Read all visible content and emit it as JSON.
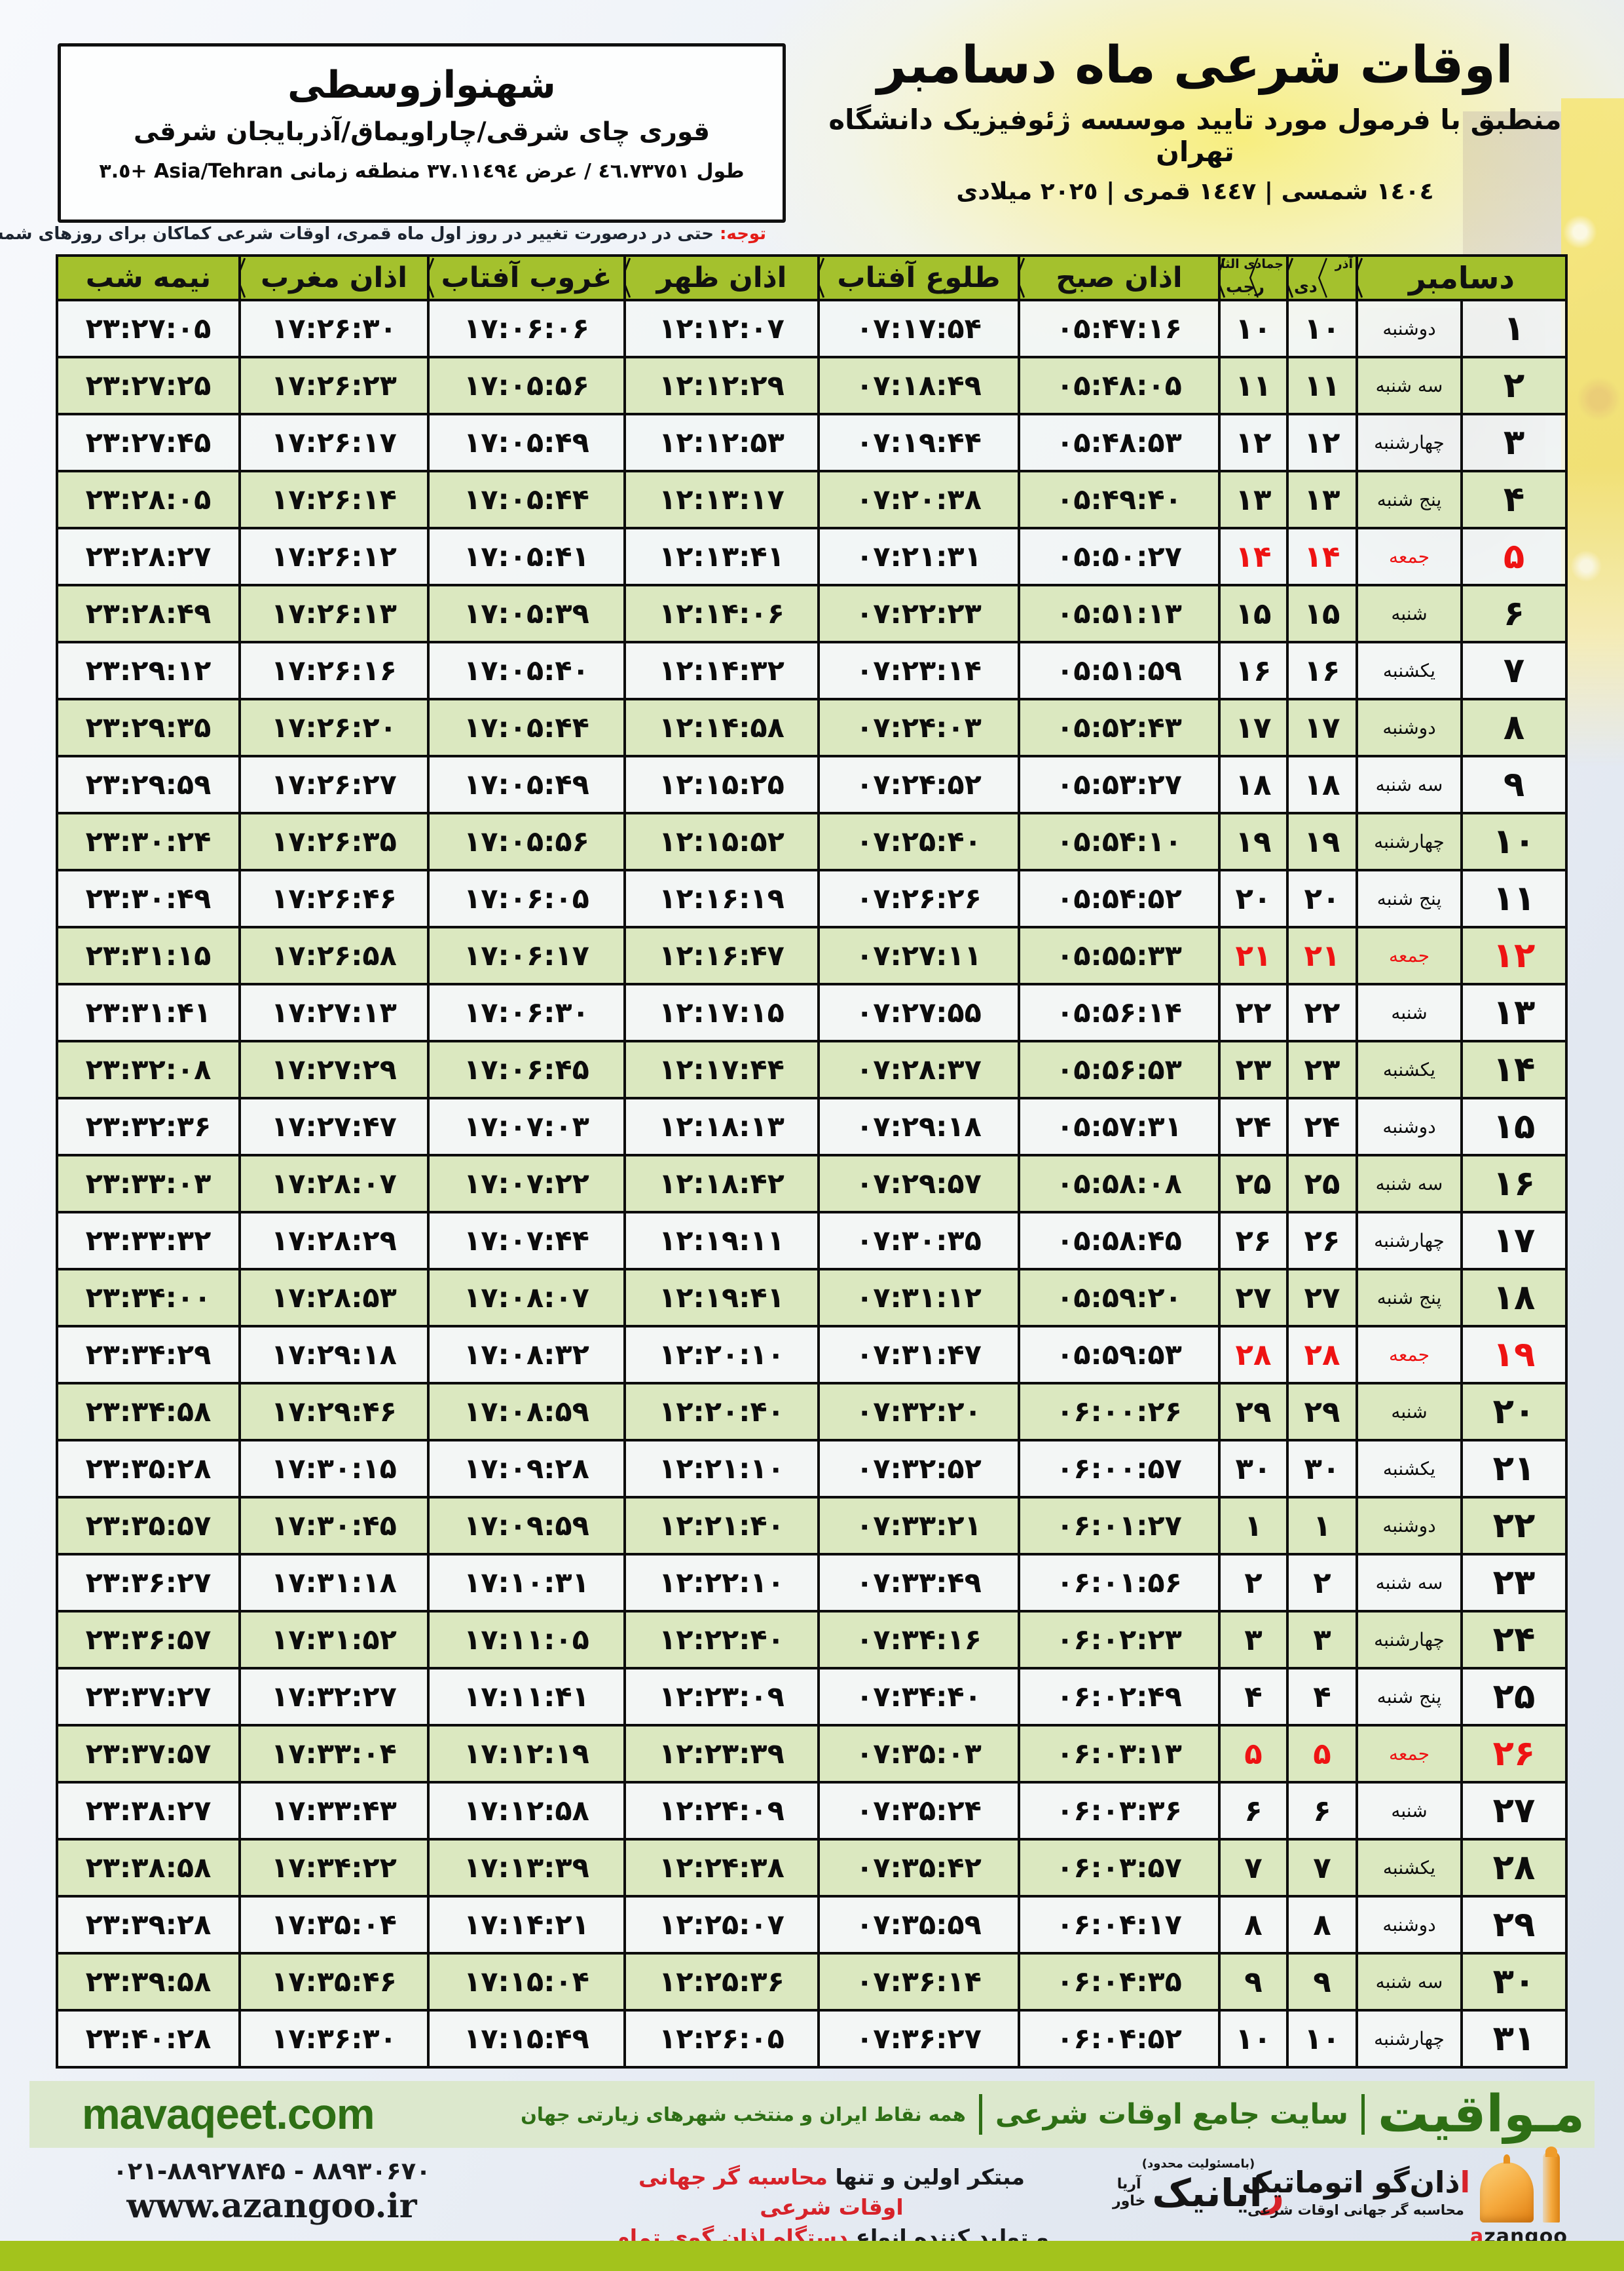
{
  "location_box": {
    "title": "شهنوازوسطی",
    "subtitle": "قوری چای شرقی/چاراویماق/آذربایجان شرقی",
    "coords": "طول ٤٦.٧٣٧٥١ / عرض ٣٧.١١٤٩٤ منطقه زمانی Asia/Tehran +٣.٥"
  },
  "header": {
    "title": "اوقات شرعی ماه دسامبر",
    "subtitle": "منطبق با فرمول مورد تایید موسسه ژئوفیزیک دانشگاه تهران",
    "dates": "١٤٠٤ شمسی | ١٤٤٧ قمری | ٢٠٢٥ میلادی"
  },
  "notice": {
    "label": "توجه:",
    "text": "حتی در درصورت تغییر در روز اول ماه قمری، اوقات شرعی کماکان برای روزهای شمسی و میلادی معتبر است."
  },
  "table": {
    "headers": {
      "month": "دسامبر",
      "jalali_top": "آذر",
      "jalali_bottom": "دی",
      "hijri_top": "جمادی الثانی",
      "hijri_bottom": "رجب",
      "fajr": "اذان صبح",
      "sunrise": "طلوع آفتاب",
      "noon": "اذان ظهر",
      "sunset": "غروب آفتاب",
      "maghrib": "اذان مغرب",
      "midnight": "نیمه شب"
    },
    "rows": [
      {
        "day": "۱",
        "weekday": "دوشنبه",
        "jalali": "۱۰",
        "hijri": "۱۰",
        "sobh": "۰۵:۴۷:۱۶",
        "tolu": "۰۷:۱۷:۵۴",
        "zohr": "۱۲:۱۲:۰۷",
        "ghorub": "۱۷:۰۶:۰۶",
        "maghreb": "۱۷:۲۶:۳۰",
        "nimeshab": "۲۳:۲۷:۰۵",
        "friday": false
      },
      {
        "day": "۲",
        "weekday": "سه شنبه",
        "jalali": "۱۱",
        "hijri": "۱۱",
        "sobh": "۰۵:۴۸:۰۵",
        "tolu": "۰۷:۱۸:۴۹",
        "zohr": "۱۲:۱۲:۲۹",
        "ghorub": "۱۷:۰۵:۵۶",
        "maghreb": "۱۷:۲۶:۲۳",
        "nimeshab": "۲۳:۲۷:۲۵",
        "friday": false
      },
      {
        "day": "۳",
        "weekday": "چهارشنبه",
        "jalali": "۱۲",
        "hijri": "۱۲",
        "sobh": "۰۵:۴۸:۵۳",
        "tolu": "۰۷:۱۹:۴۴",
        "zohr": "۱۲:۱۲:۵۳",
        "ghorub": "۱۷:۰۵:۴۹",
        "maghreb": "۱۷:۲۶:۱۷",
        "nimeshab": "۲۳:۲۷:۴۵",
        "friday": false
      },
      {
        "day": "۴",
        "weekday": "پنج شنبه",
        "jalali": "۱۳",
        "hijri": "۱۳",
        "sobh": "۰۵:۴۹:۴۰",
        "tolu": "۰۷:۲۰:۳۸",
        "zohr": "۱۲:۱۳:۱۷",
        "ghorub": "۱۷:۰۵:۴۴",
        "maghreb": "۱۷:۲۶:۱۴",
        "nimeshab": "۲۳:۲۸:۰۵",
        "friday": false
      },
      {
        "day": "۵",
        "weekday": "جمعه",
        "jalali": "۱۴",
        "hijri": "۱۴",
        "sobh": "۰۵:۵۰:۲۷",
        "tolu": "۰۷:۲۱:۳۱",
        "zohr": "۱۲:۱۳:۴۱",
        "ghorub": "۱۷:۰۵:۴۱",
        "maghreb": "۱۷:۲۶:۱۲",
        "nimeshab": "۲۳:۲۸:۲۷",
        "friday": true
      },
      {
        "day": "۶",
        "weekday": "شنبه",
        "jalali": "۱۵",
        "hijri": "۱۵",
        "sobh": "۰۵:۵۱:۱۳",
        "tolu": "۰۷:۲۲:۲۳",
        "zohr": "۱۲:۱۴:۰۶",
        "ghorub": "۱۷:۰۵:۳۹",
        "maghreb": "۱۷:۲۶:۱۳",
        "nimeshab": "۲۳:۲۸:۴۹",
        "friday": false
      },
      {
        "day": "۷",
        "weekday": "یکشنبه",
        "jalali": "۱۶",
        "hijri": "۱۶",
        "sobh": "۰۵:۵۱:۵۹",
        "tolu": "۰۷:۲۳:۱۴",
        "zohr": "۱۲:۱۴:۳۲",
        "ghorub": "۱۷:۰۵:۴۰",
        "maghreb": "۱۷:۲۶:۱۶",
        "nimeshab": "۲۳:۲۹:۱۲",
        "friday": false
      },
      {
        "day": "۸",
        "weekday": "دوشنبه",
        "jalali": "۱۷",
        "hijri": "۱۷",
        "sobh": "۰۵:۵۲:۴۳",
        "tolu": "۰۷:۲۴:۰۳",
        "zohr": "۱۲:۱۴:۵۸",
        "ghorub": "۱۷:۰۵:۴۴",
        "maghreb": "۱۷:۲۶:۲۰",
        "nimeshab": "۲۳:۲۹:۳۵",
        "friday": false
      },
      {
        "day": "۹",
        "weekday": "سه شنبه",
        "jalali": "۱۸",
        "hijri": "۱۸",
        "sobh": "۰۵:۵۳:۲۷",
        "tolu": "۰۷:۲۴:۵۲",
        "zohr": "۱۲:۱۵:۲۵",
        "ghorub": "۱۷:۰۵:۴۹",
        "maghreb": "۱۷:۲۶:۲۷",
        "nimeshab": "۲۳:۲۹:۵۹",
        "friday": false
      },
      {
        "day": "۱۰",
        "weekday": "چهارشنبه",
        "jalali": "۱۹",
        "hijri": "۱۹",
        "sobh": "۰۵:۵۴:۱۰",
        "tolu": "۰۷:۲۵:۴۰",
        "zohr": "۱۲:۱۵:۵۲",
        "ghorub": "۱۷:۰۵:۵۶",
        "maghreb": "۱۷:۲۶:۳۵",
        "nimeshab": "۲۳:۳۰:۲۴",
        "friday": false
      },
      {
        "day": "۱۱",
        "weekday": "پنج شنبه",
        "jalali": "۲۰",
        "hijri": "۲۰",
        "sobh": "۰۵:۵۴:۵۲",
        "tolu": "۰۷:۲۶:۲۶",
        "zohr": "۱۲:۱۶:۱۹",
        "ghorub": "۱۷:۰۶:۰۵",
        "maghreb": "۱۷:۲۶:۴۶",
        "nimeshab": "۲۳:۳۰:۴۹",
        "friday": false
      },
      {
        "day": "۱۲",
        "weekday": "جمعه",
        "jalali": "۲۱",
        "hijri": "۲۱",
        "sobh": "۰۵:۵۵:۳۳",
        "tolu": "۰۷:۲۷:۱۱",
        "zohr": "۱۲:۱۶:۴۷",
        "ghorub": "۱۷:۰۶:۱۷",
        "maghreb": "۱۷:۲۶:۵۸",
        "nimeshab": "۲۳:۳۱:۱۵",
        "friday": true
      },
      {
        "day": "۱۳",
        "weekday": "شنبه",
        "jalali": "۲۲",
        "hijri": "۲۲",
        "sobh": "۰۵:۵۶:۱۴",
        "tolu": "۰۷:۲۷:۵۵",
        "zohr": "۱۲:۱۷:۱۵",
        "ghorub": "۱۷:۰۶:۳۰",
        "maghreb": "۱۷:۲۷:۱۳",
        "nimeshab": "۲۳:۳۱:۴۱",
        "friday": false
      },
      {
        "day": "۱۴",
        "weekday": "یکشنبه",
        "jalali": "۲۳",
        "hijri": "۲۳",
        "sobh": "۰۵:۵۶:۵۳",
        "tolu": "۰۷:۲۸:۳۷",
        "zohr": "۱۲:۱۷:۴۴",
        "ghorub": "۱۷:۰۶:۴۵",
        "maghreb": "۱۷:۲۷:۲۹",
        "nimeshab": "۲۳:۳۲:۰۸",
        "friday": false
      },
      {
        "day": "۱۵",
        "weekday": "دوشنبه",
        "jalali": "۲۴",
        "hijri": "۲۴",
        "sobh": "۰۵:۵۷:۳۱",
        "tolu": "۰۷:۲۹:۱۸",
        "zohr": "۱۲:۱۸:۱۳",
        "ghorub": "۱۷:۰۷:۰۳",
        "maghreb": "۱۷:۲۷:۴۷",
        "nimeshab": "۲۳:۳۲:۳۶",
        "friday": false
      },
      {
        "day": "۱۶",
        "weekday": "سه شنبه",
        "jalali": "۲۵",
        "hijri": "۲۵",
        "sobh": "۰۵:۵۸:۰۸",
        "tolu": "۰۷:۲۹:۵۷",
        "zohr": "۱۲:۱۸:۴۲",
        "ghorub": "۱۷:۰۷:۲۲",
        "maghreb": "۱۷:۲۸:۰۷",
        "nimeshab": "۲۳:۳۳:۰۳",
        "friday": false
      },
      {
        "day": "۱۷",
        "weekday": "چهارشنبه",
        "jalali": "۲۶",
        "hijri": "۲۶",
        "sobh": "۰۵:۵۸:۴۵",
        "tolu": "۰۷:۳۰:۳۵",
        "zohr": "۱۲:۱۹:۱۱",
        "ghorub": "۱۷:۰۷:۴۴",
        "maghreb": "۱۷:۲۸:۲۹",
        "nimeshab": "۲۳:۳۳:۳۲",
        "friday": false
      },
      {
        "day": "۱۸",
        "weekday": "پنج شنبه",
        "jalali": "۲۷",
        "hijri": "۲۷",
        "sobh": "۰۵:۵۹:۲۰",
        "tolu": "۰۷:۳۱:۱۲",
        "zohr": "۱۲:۱۹:۴۱",
        "ghorub": "۱۷:۰۸:۰۷",
        "maghreb": "۱۷:۲۸:۵۳",
        "nimeshab": "۲۳:۳۴:۰۰",
        "friday": false
      },
      {
        "day": "۱۹",
        "weekday": "جمعه",
        "jalali": "۲۸",
        "hijri": "۲۸",
        "sobh": "۰۵:۵۹:۵۳",
        "tolu": "۰۷:۳۱:۴۷",
        "zohr": "۱۲:۲۰:۱۰",
        "ghorub": "۱۷:۰۸:۳۲",
        "maghreb": "۱۷:۲۹:۱۸",
        "nimeshab": "۲۳:۳۴:۲۹",
        "friday": true
      },
      {
        "day": "۲۰",
        "weekday": "شنبه",
        "jalali": "۲۹",
        "hijri": "۲۹",
        "sobh": "۰۶:۰۰:۲۶",
        "tolu": "۰۷:۳۲:۲۰",
        "zohr": "۱۲:۲۰:۴۰",
        "ghorub": "۱۷:۰۸:۵۹",
        "maghreb": "۱۷:۲۹:۴۶",
        "nimeshab": "۲۳:۳۴:۵۸",
        "friday": false
      },
      {
        "day": "۲۱",
        "weekday": "یکشنبه",
        "jalali": "۳۰",
        "hijri": "۳۰",
        "sobh": "۰۶:۰۰:۵۷",
        "tolu": "۰۷:۳۲:۵۲",
        "zohr": "۱۲:۲۱:۱۰",
        "ghorub": "۱۷:۰۹:۲۸",
        "maghreb": "۱۷:۳۰:۱۵",
        "nimeshab": "۲۳:۳۵:۲۸",
        "friday": false
      },
      {
        "day": "۲۲",
        "weekday": "دوشنبه",
        "jalali": "۱",
        "hijri": "۱",
        "sobh": "۰۶:۰۱:۲۷",
        "tolu": "۰۷:۳۳:۲۱",
        "zohr": "۱۲:۲۱:۴۰",
        "ghorub": "۱۷:۰۹:۵۹",
        "maghreb": "۱۷:۳۰:۴۵",
        "nimeshab": "۲۳:۳۵:۵۷",
        "friday": false
      },
      {
        "day": "۲۳",
        "weekday": "سه شنبه",
        "jalali": "۲",
        "hijri": "۲",
        "sobh": "۰۶:۰۱:۵۶",
        "tolu": "۰۷:۳۳:۴۹",
        "zohr": "۱۲:۲۲:۱۰",
        "ghorub": "۱۷:۱۰:۳۱",
        "maghreb": "۱۷:۳۱:۱۸",
        "nimeshab": "۲۳:۳۶:۲۷",
        "friday": false
      },
      {
        "day": "۲۴",
        "weekday": "چهارشنبه",
        "jalali": "۳",
        "hijri": "۳",
        "sobh": "۰۶:۰۲:۲۳",
        "tolu": "۰۷:۳۴:۱۶",
        "zohr": "۱۲:۲۲:۴۰",
        "ghorub": "۱۷:۱۱:۰۵",
        "maghreb": "۱۷:۳۱:۵۲",
        "nimeshab": "۲۳:۳۶:۵۷",
        "friday": false
      },
      {
        "day": "۲۵",
        "weekday": "پنج شنبه",
        "jalali": "۴",
        "hijri": "۴",
        "sobh": "۰۶:۰۲:۴۹",
        "tolu": "۰۷:۳۴:۴۰",
        "zohr": "۱۲:۲۳:۰۹",
        "ghorub": "۱۷:۱۱:۴۱",
        "maghreb": "۱۷:۳۲:۲۷",
        "nimeshab": "۲۳:۳۷:۲۷",
        "friday": false
      },
      {
        "day": "۲۶",
        "weekday": "جمعه",
        "jalali": "۵",
        "hijri": "۵",
        "sobh": "۰۶:۰۳:۱۳",
        "tolu": "۰۷:۳۵:۰۳",
        "zohr": "۱۲:۲۳:۳۹",
        "ghorub": "۱۷:۱۲:۱۹",
        "maghreb": "۱۷:۳۳:۰۴",
        "nimeshab": "۲۳:۳۷:۵۷",
        "friday": true
      },
      {
        "day": "۲۷",
        "weekday": "شنبه",
        "jalali": "۶",
        "hijri": "۶",
        "sobh": "۰۶:۰۳:۳۶",
        "tolu": "۰۷:۳۵:۲۴",
        "zohr": "۱۲:۲۴:۰۹",
        "ghorub": "۱۷:۱۲:۵۸",
        "maghreb": "۱۷:۳۳:۴۳",
        "nimeshab": "۲۳:۳۸:۲۷",
        "friday": false
      },
      {
        "day": "۲۸",
        "weekday": "یکشنبه",
        "jalali": "۷",
        "hijri": "۷",
        "sobh": "۰۶:۰۳:۵۷",
        "tolu": "۰۷:۳۵:۴۲",
        "zohr": "۱۲:۲۴:۳۸",
        "ghorub": "۱۷:۱۳:۳۹",
        "maghreb": "۱۷:۳۴:۲۲",
        "nimeshab": "۲۳:۳۸:۵۸",
        "friday": false
      },
      {
        "day": "۲۹",
        "weekday": "دوشنبه",
        "jalali": "۸",
        "hijri": "۸",
        "sobh": "۰۶:۰۴:۱۷",
        "tolu": "۰۷:۳۵:۵۹",
        "zohr": "۱۲:۲۵:۰۷",
        "ghorub": "۱۷:۱۴:۲۱",
        "maghreb": "۱۷:۳۵:۰۴",
        "nimeshab": "۲۳:۳۹:۲۸",
        "friday": false
      },
      {
        "day": "۳۰",
        "weekday": "سه شنبه",
        "jalali": "۹",
        "hijri": "۹",
        "sobh": "۰۶:۰۴:۳۵",
        "tolu": "۰۷:۳۶:۱۴",
        "zohr": "۱۲:۲۵:۳۶",
        "ghorub": "۱۷:۱۵:۰۴",
        "maghreb": "۱۷:۳۵:۴۶",
        "nimeshab": "۲۳:۳۹:۵۸",
        "friday": false
      },
      {
        "day": "۳۱",
        "weekday": "چهارشنبه",
        "jalali": "۱۰",
        "hijri": "۱۰",
        "sobh": "۰۶:۰۴:۵۲",
        "tolu": "۰۷:۳۶:۲۷",
        "zohr": "۱۲:۲۶:۰۵",
        "ghorub": "۱۷:۱۵:۴۹",
        "maghreb": "۱۷:۳۶:۳۰",
        "nimeshab": "۲۳:۴۰:۲۸",
        "friday": false
      }
    ]
  },
  "footer": {
    "site_latin": "mavaqeet.com",
    "brand": "مـواقیت",
    "tagline": "سایت جامع اوقات شرعی",
    "coverage": "همه نقاط ایران و منتخب شهرهای زیارتی جهان"
  },
  "bottom": {
    "phone": "۰۲۱-۸۸۹۲۷۸۴۵ - ۸۸۹۳۰۶۷۰",
    "website": "www.azangoo.ir",
    "line1_black": "مبتکر اولین و تنها ",
    "line1_red": "محاسبه گر جهانی اوقات شرعی",
    "line2_black": "و تولید کننده انواع ",
    "line2_red": "دستگاه اذان گوی تمام خودکار ماهواره ای",
    "rayanik": {
      "note": "(بامسئولیت محدود)",
      "name_first": "ر",
      "name_rest": "ایانیک",
      "side_top": "آریا",
      "side_bottom": "خاور"
    },
    "azangoo": {
      "name_first": "ا",
      "name_rest": "ذان‌گو اتوماتیک",
      "sub": "محاسبه گر جهانی اوقات شرعی",
      "latin_first": "a",
      "latin_rest": "zangoo"
    }
  },
  "colors": {
    "header_green": "#a4c12d",
    "row_green": "#dbe8c0",
    "row_white": "#f3f6f5",
    "friday_red": "#ee1313",
    "footer_green_text": "#2e6f15",
    "footer_band": "#dce8cd",
    "bottom_strip": "#a3c31c"
  }
}
